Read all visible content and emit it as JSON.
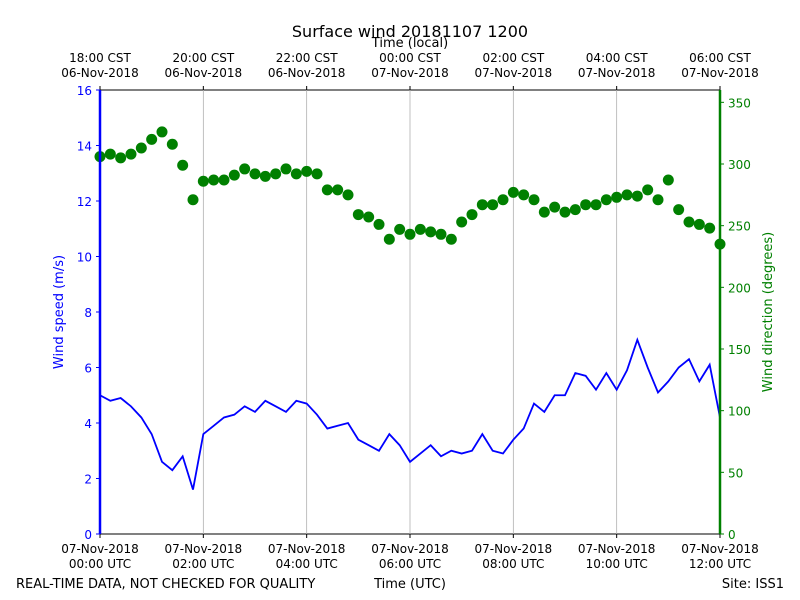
{
  "chart_data": {
    "type": "line",
    "title": "Surface wind 20181107 1200",
    "x2label": "Time (local)",
    "xlabel": "Time (UTC)",
    "footer_left": "REAL-TIME DATA, NOT CHECKED FOR QUALITY",
    "footer_right": "Site: ISS1",
    "grid": "x",
    "xlim": [
      "2018-11-07T00:00",
      "2018-11-07T12:00"
    ],
    "xticks": [
      {
        "value": "2018-11-07T00:00",
        "label": [
          "07-Nov-2018",
          "00:00 UTC"
        ]
      },
      {
        "value": "2018-11-07T02:00",
        "label": [
          "07-Nov-2018",
          "02:00 UTC"
        ]
      },
      {
        "value": "2018-11-07T04:00",
        "label": [
          "07-Nov-2018",
          "04:00 UTC"
        ]
      },
      {
        "value": "2018-11-07T06:00",
        "label": [
          "07-Nov-2018",
          "06:00 UTC"
        ]
      },
      {
        "value": "2018-11-07T08:00",
        "label": [
          "07-Nov-2018",
          "08:00 UTC"
        ]
      },
      {
        "value": "2018-11-07T10:00",
        "label": [
          "07-Nov-2018",
          "10:00 UTC"
        ]
      },
      {
        "value": "2018-11-07T12:00",
        "label": [
          "07-Nov-2018",
          "12:00 UTC"
        ]
      }
    ],
    "x2ticks": [
      {
        "value": "2018-11-07T00:00",
        "label": [
          "18:00 CST",
          "06-Nov-2018"
        ]
      },
      {
        "value": "2018-11-07T02:00",
        "label": [
          "20:00 CST",
          "06-Nov-2018"
        ]
      },
      {
        "value": "2018-11-07T04:00",
        "label": [
          "22:00 CST",
          "06-Nov-2018"
        ]
      },
      {
        "value": "2018-11-07T06:00",
        "label": [
          "00:00 CST",
          "07-Nov-2018"
        ]
      },
      {
        "value": "2018-11-07T08:00",
        "label": [
          "02:00 CST",
          "07-Nov-2018"
        ]
      },
      {
        "value": "2018-11-07T10:00",
        "label": [
          "04:00 CST",
          "07-Nov-2018"
        ]
      },
      {
        "value": "2018-11-07T12:00",
        "label": [
          "06:00 CST",
          "07-Nov-2018"
        ]
      }
    ],
    "ylim": [
      0,
      16
    ],
    "yticks": [
      0,
      2,
      4,
      6,
      8,
      10,
      12,
      14,
      16
    ],
    "y2lim": [
      0,
      360
    ],
    "y2ticks": [
      0,
      50,
      100,
      150,
      200,
      250,
      300,
      350
    ],
    "x": [
      "2018-11-07T00:00",
      "2018-11-07T00:12",
      "2018-11-07T00:24",
      "2018-11-07T00:36",
      "2018-11-07T00:48",
      "2018-11-07T01:00",
      "2018-11-07T01:12",
      "2018-11-07T01:24",
      "2018-11-07T01:36",
      "2018-11-07T01:48",
      "2018-11-07T02:00",
      "2018-11-07T02:12",
      "2018-11-07T02:24",
      "2018-11-07T02:36",
      "2018-11-07T02:48",
      "2018-11-07T03:00",
      "2018-11-07T03:12",
      "2018-11-07T03:24",
      "2018-11-07T03:36",
      "2018-11-07T03:48",
      "2018-11-07T04:00",
      "2018-11-07T04:12",
      "2018-11-07T04:24",
      "2018-11-07T04:36",
      "2018-11-07T04:48",
      "2018-11-07T05:00",
      "2018-11-07T05:12",
      "2018-11-07T05:24",
      "2018-11-07T05:36",
      "2018-11-07T05:48",
      "2018-11-07T06:00",
      "2018-11-07T06:12",
      "2018-11-07T06:24",
      "2018-11-07T06:36",
      "2018-11-07T06:48",
      "2018-11-07T07:00",
      "2018-11-07T07:12",
      "2018-11-07T07:24",
      "2018-11-07T07:36",
      "2018-11-07T07:48",
      "2018-11-07T08:00",
      "2018-11-07T08:12",
      "2018-11-07T08:24",
      "2018-11-07T08:36",
      "2018-11-07T08:48",
      "2018-11-07T09:00",
      "2018-11-07T09:12",
      "2018-11-07T09:24",
      "2018-11-07T09:36",
      "2018-11-07T09:48",
      "2018-11-07T10:00",
      "2018-11-07T10:12",
      "2018-11-07T10:24",
      "2018-11-07T10:36",
      "2018-11-07T10:48",
      "2018-11-07T11:00",
      "2018-11-07T11:12",
      "2018-11-07T11:24",
      "2018-11-07T11:36",
      "2018-11-07T11:48",
      "2018-11-07T12:00"
    ],
    "series": [
      {
        "name": "Wind speed (m/s)",
        "color": "#0000ff",
        "axis": "y",
        "style": "line",
        "values": [
          5.0,
          4.8,
          4.9,
          4.6,
          4.2,
          3.6,
          2.6,
          2.3,
          2.8,
          1.6,
          3.6,
          3.9,
          4.2,
          4.3,
          4.6,
          4.4,
          4.8,
          4.6,
          4.4,
          4.8,
          4.7,
          4.3,
          3.8,
          3.9,
          4.0,
          3.4,
          3.2,
          3.0,
          3.6,
          3.2,
          2.6,
          2.9,
          3.2,
          2.8,
          3.0,
          2.9,
          3.0,
          3.6,
          3.0,
          2.9,
          3.4,
          3.8,
          4.7,
          4.4,
          5.0,
          5.0,
          5.8,
          5.7,
          5.2,
          5.8,
          5.2,
          5.9,
          7.0,
          6.0,
          5.1,
          5.5,
          6.0,
          6.3,
          5.5,
          6.1,
          4.2
        ]
      },
      {
        "name": "Wind direction (degrees)",
        "color": "#008000",
        "axis": "y2",
        "style": "markers",
        "values": [
          306,
          308,
          305,
          308,
          313,
          320,
          326,
          316,
          299,
          271,
          286,
          287,
          287,
          291,
          296,
          292,
          290,
          292,
          296,
          292,
          294,
          292,
          279,
          279,
          275,
          259,
          257,
          251,
          239,
          247,
          243,
          247,
          245,
          243,
          239,
          253,
          259,
          267,
          267,
          271,
          277,
          275,
          271,
          261,
          265,
          261,
          263,
          267,
          267,
          271,
          273,
          275,
          274,
          279,
          271,
          287,
          263,
          253,
          251,
          248,
          235
        ]
      }
    ]
  }
}
